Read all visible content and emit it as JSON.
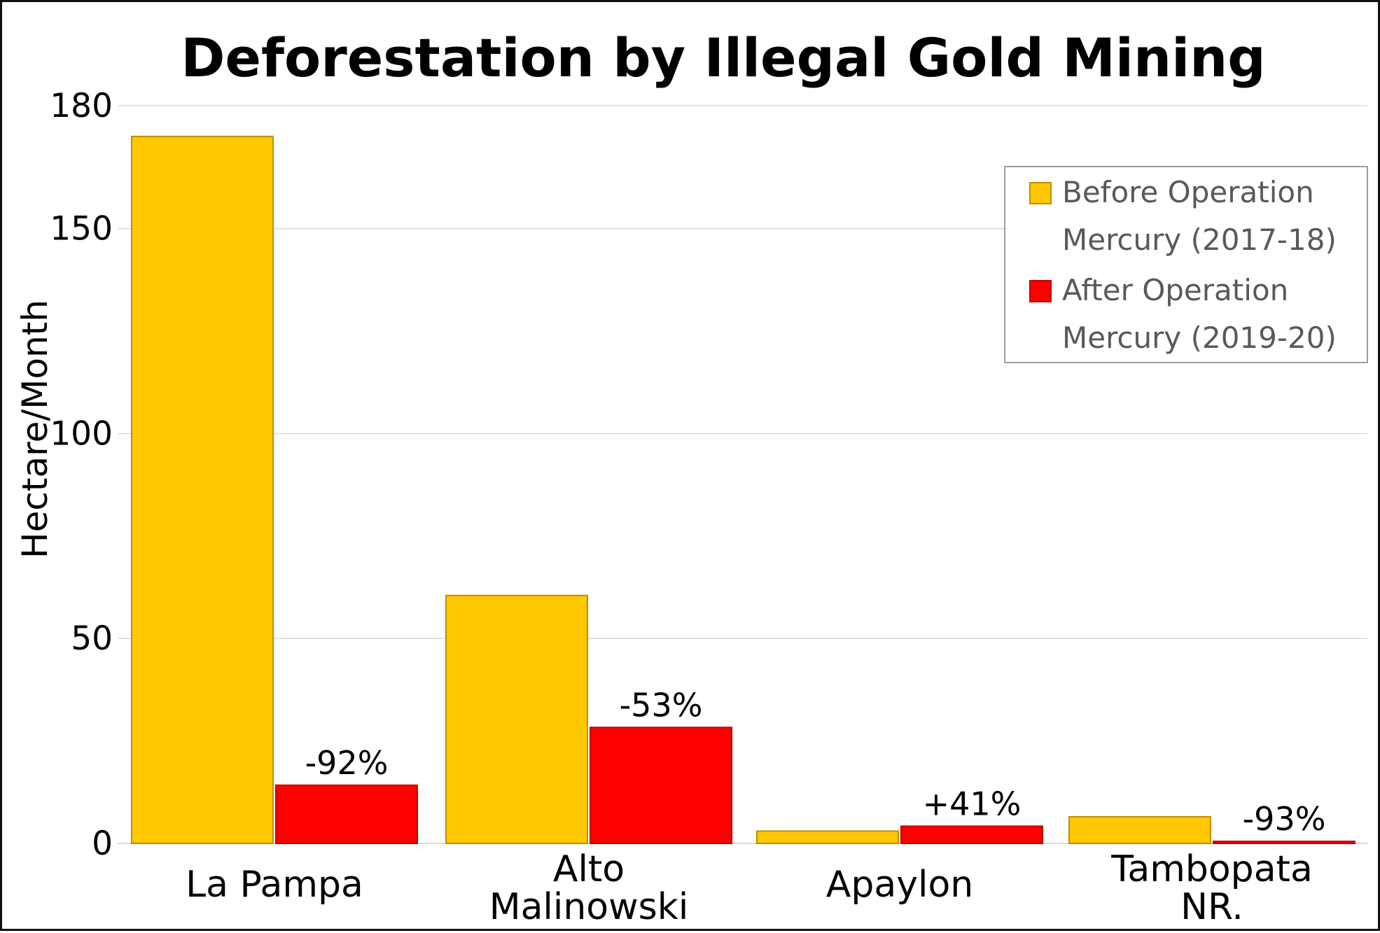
{
  "chart_data": {
    "type": "bar",
    "title": "Deforestation by Illegal Gold Mining",
    "xlabel": "",
    "ylabel": "Hectare/Month",
    "ylim": [
      0,
      180
    ],
    "yticks": [
      0,
      50,
      100,
      150,
      180
    ],
    "grid": true,
    "legend_position": "top-right",
    "categories": [
      [
        "La Pampa"
      ],
      [
        "Alto",
        "Malinowski"
      ],
      [
        "Apaylon"
      ],
      [
        "Tambopata",
        "NR."
      ]
    ],
    "series": [
      {
        "name": [
          "Before Operation",
          "Mercury (2017-18)"
        ],
        "color": "#FFC800",
        "edge_color": "#BF9000",
        "values": [
          172.5,
          60.5,
          3.0,
          6.5
        ],
        "labels": [
          "",
          "",
          "",
          ""
        ]
      },
      {
        "name": [
          "After Operation",
          "Mercury (2019-20)"
        ],
        "color": "#FF0000",
        "edge_color": "#C00000",
        "values": [
          14.2,
          28.3,
          4.2,
          0.5
        ],
        "labels": [
          "-92%",
          "-53%",
          "+41%",
          "-93%"
        ]
      }
    ]
  }
}
